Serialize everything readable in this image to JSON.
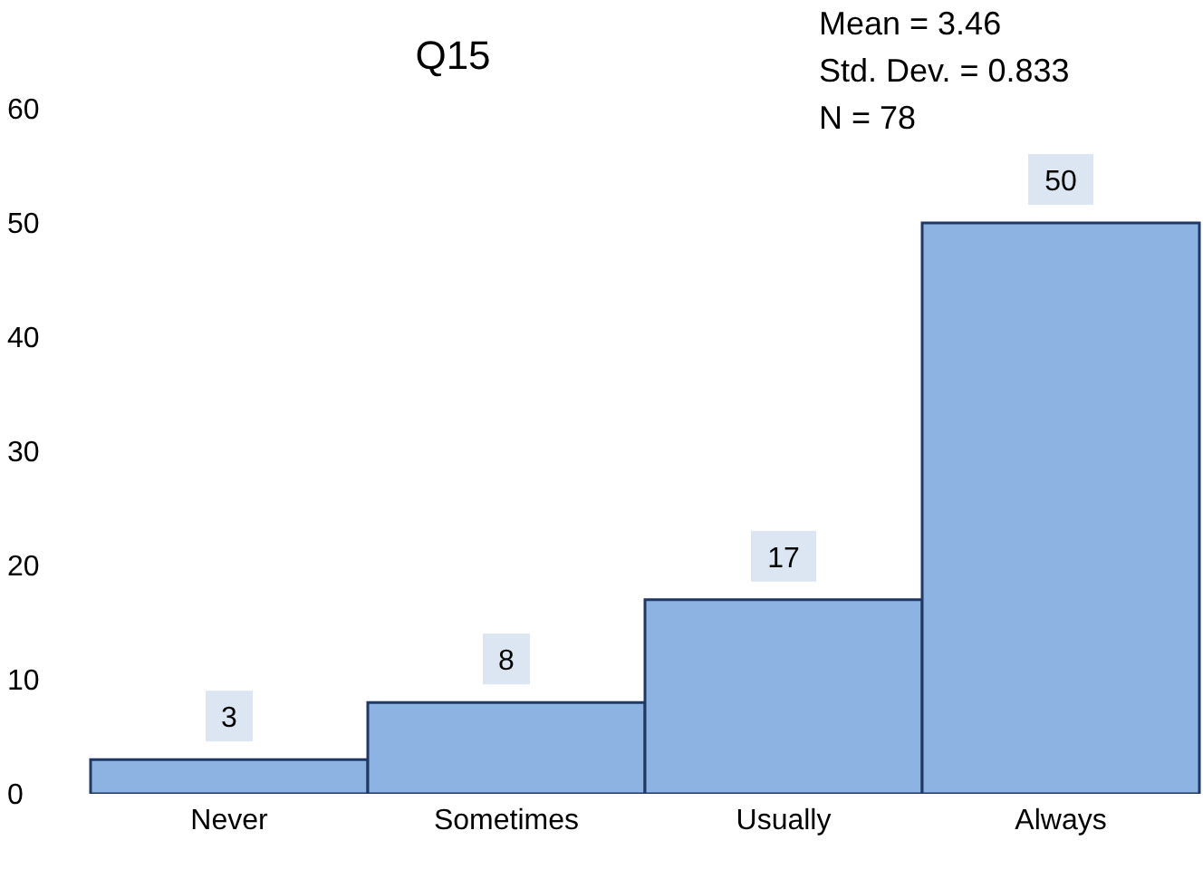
{
  "chart_data": {
    "type": "bar",
    "title": "Q15",
    "annotations": [
      "Mean = 3.46",
      "Std. Dev. = 0.833",
      "N = 78"
    ],
    "categories": [
      "Never",
      "Sometimes",
      "Usually",
      "Always"
    ],
    "values": [
      3,
      8,
      17,
      50
    ],
    "color": "#8db3e2",
    "ylim": [
      0,
      60
    ],
    "yticks": [
      0,
      10,
      20,
      30,
      40,
      50,
      60
    ],
    "grid": false,
    "data_labels": true
  }
}
